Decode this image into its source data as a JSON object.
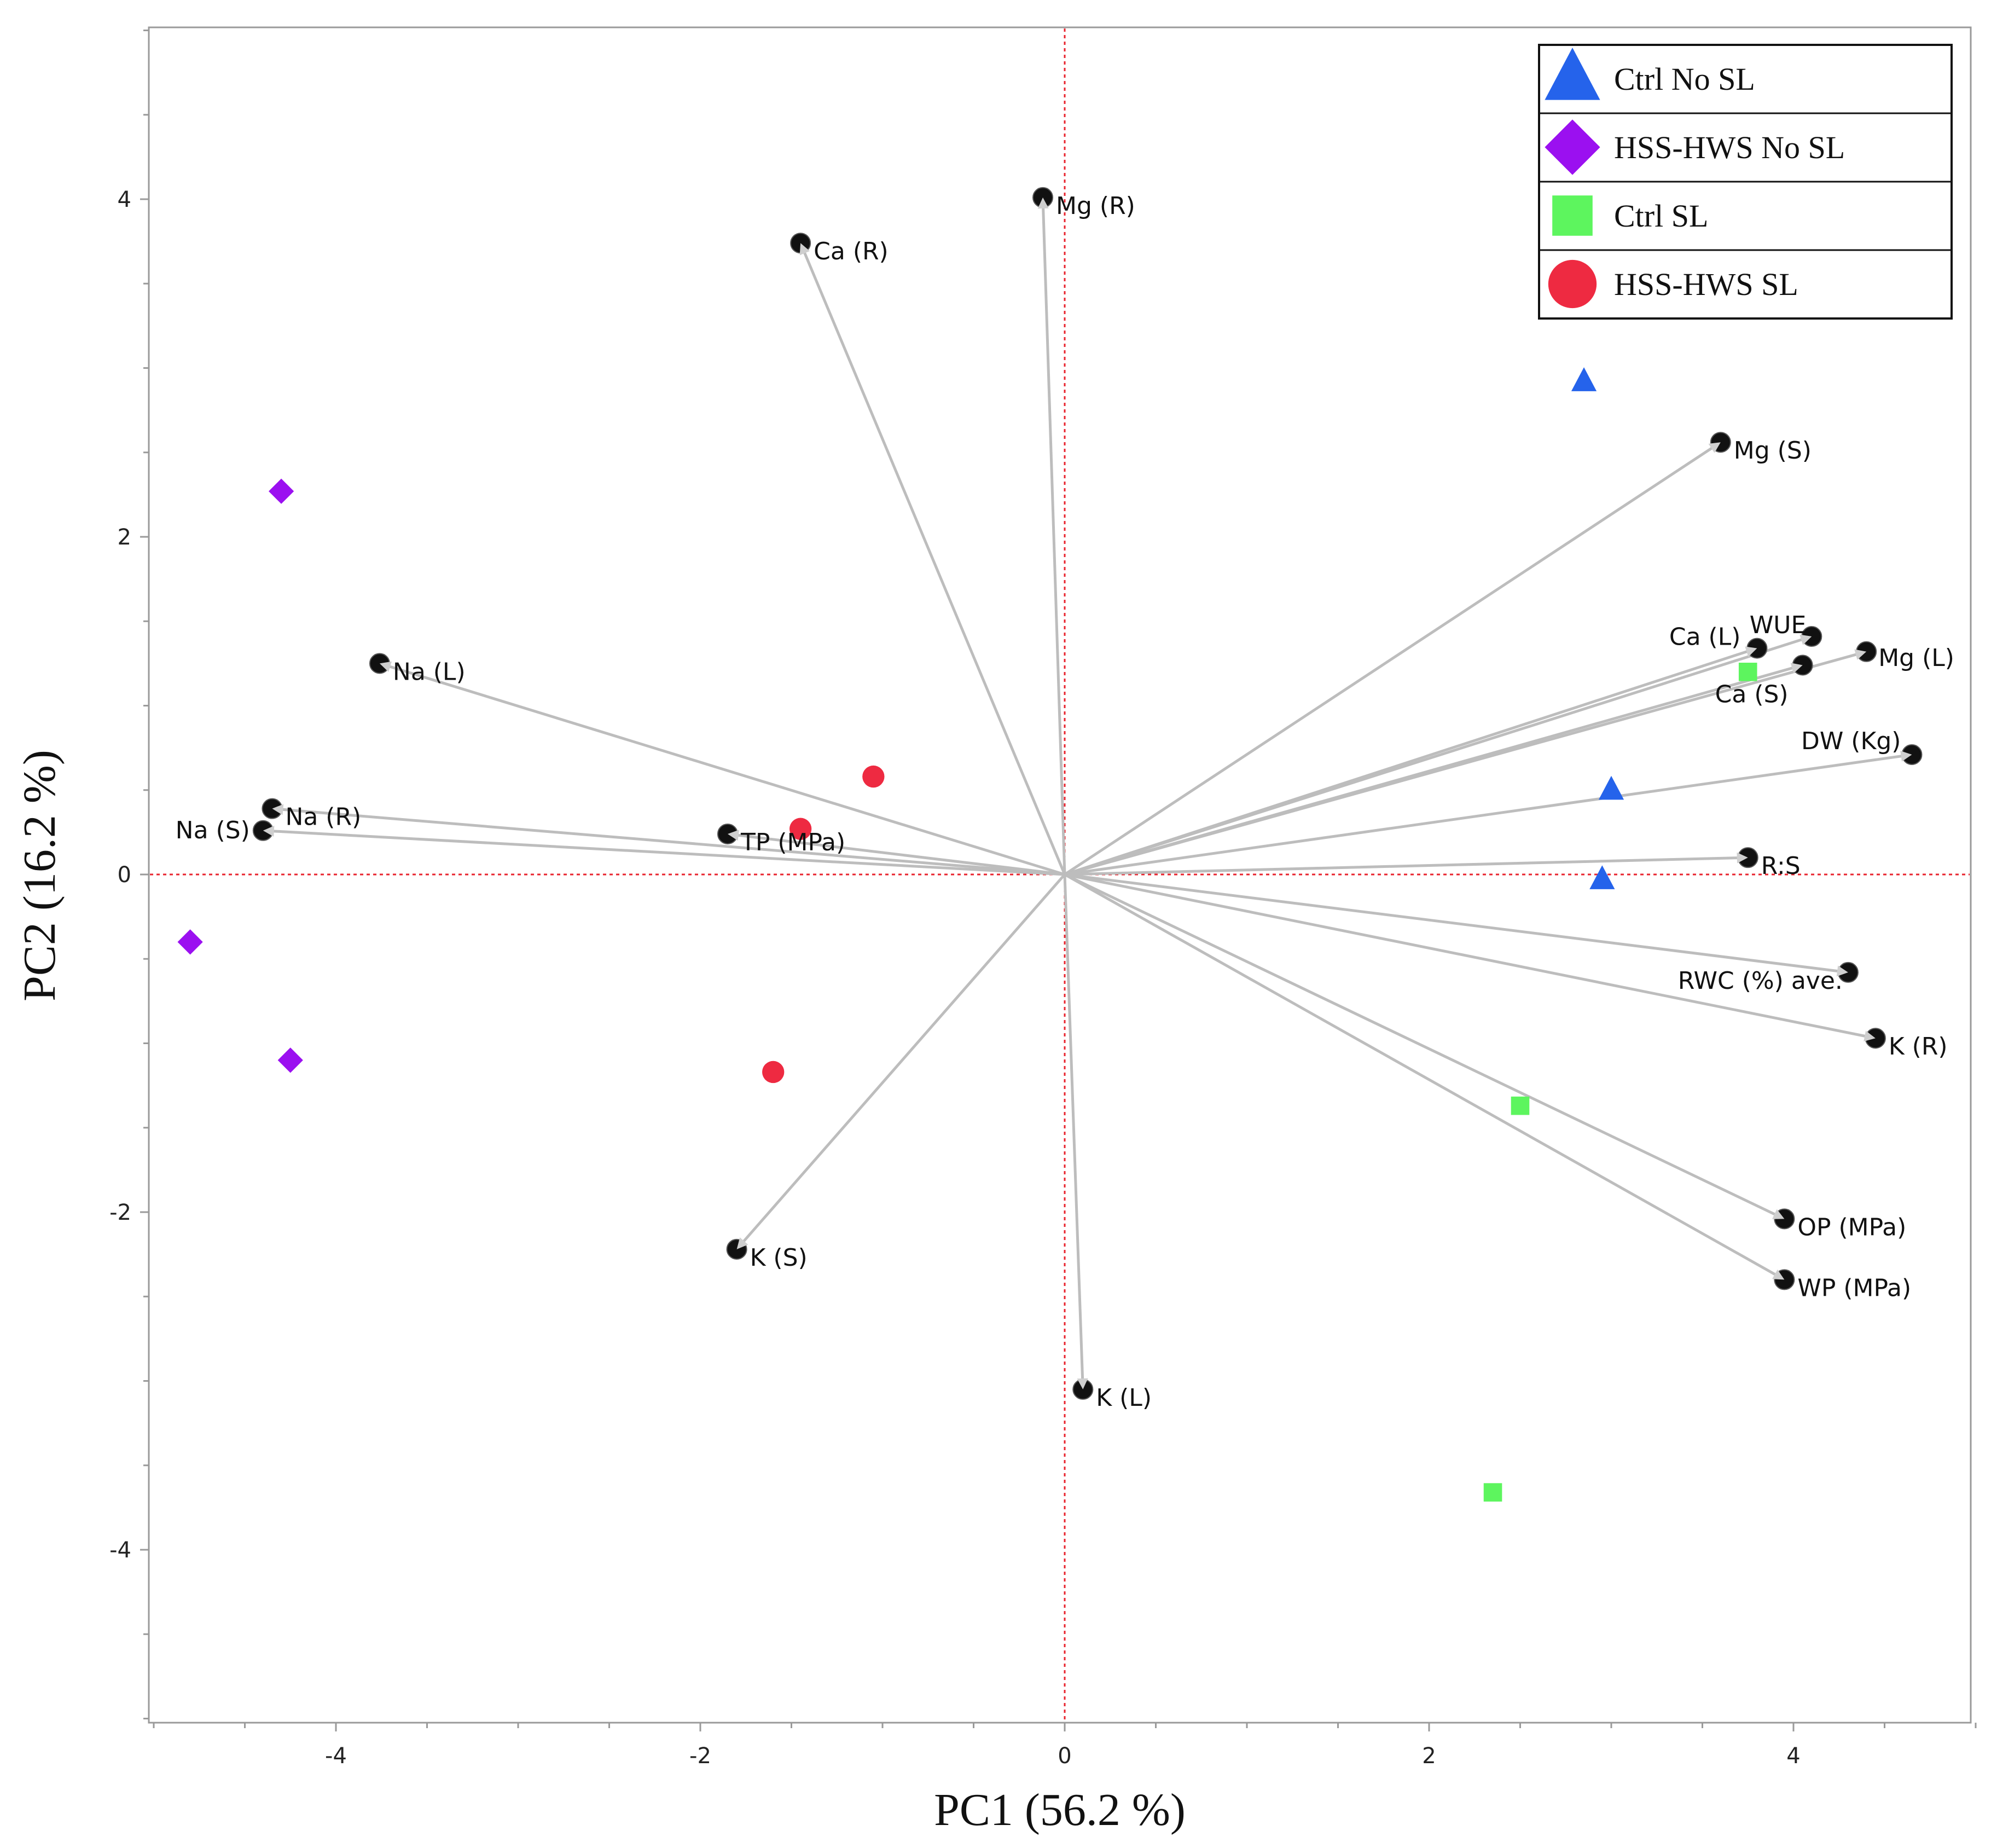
{
  "chart_data": {
    "type": "scatter",
    "subtype": "pca-biplot",
    "xlabel": "PC1 (56.2 %)",
    "ylabel": "PC2 (16.2 %)",
    "xlim": [
      -5,
      5
    ],
    "ylim": [
      -5,
      5
    ],
    "x_ticks": [
      -4,
      -2,
      0,
      2,
      4
    ],
    "y_ticks": [
      -4,
      -2,
      0,
      2,
      4
    ],
    "reference_lines": {
      "x": 0,
      "y": 0,
      "color": "#e8242f",
      "style": "dotted"
    },
    "loadings": [
      {
        "label": "Mg  (R)",
        "x": -0.12,
        "y": 4.01
      },
      {
        "label": "Ca  (R)",
        "x": -1.45,
        "y": 3.74
      },
      {
        "label": "Na  (L)",
        "x": -3.76,
        "y": 1.25
      },
      {
        "label": "Na  (R)",
        "x": -4.35,
        "y": 0.39
      },
      {
        "label": "Na  (S)",
        "x": -4.4,
        "y": 0.26
      },
      {
        "label": "TP (MPa)",
        "x": -1.85,
        "y": 0.24
      },
      {
        "label": "K  (S)",
        "x": -1.8,
        "y": -2.22
      },
      {
        "label": "K  (L)",
        "x": 0.1,
        "y": -3.05
      },
      {
        "label": "Mg  (S)",
        "x": 3.6,
        "y": 2.56
      },
      {
        "label": "Ca  (L)",
        "x": 3.8,
        "y": 1.34
      },
      {
        "label": "WUE",
        "x": 4.1,
        "y": 1.41
      },
      {
        "label": "Mg  (L)",
        "x": 4.4,
        "y": 1.32
      },
      {
        "label": "Ca  (S)",
        "x": 4.05,
        "y": 1.24
      },
      {
        "label": "DW  (Kg)",
        "x": 4.65,
        "y": 0.71
      },
      {
        "label": "R:S",
        "x": 3.75,
        "y": 0.1
      },
      {
        "label": "RWC (%) ave.",
        "x": 4.3,
        "y": -0.58
      },
      {
        "label": "K  (R)",
        "x": 4.45,
        "y": -0.97
      },
      {
        "label": "OP (MPa)",
        "x": 3.95,
        "y": -2.04
      },
      {
        "label": "WP  (MPa)",
        "x": 3.95,
        "y": -2.4
      }
    ],
    "series": [
      {
        "name": "Ctrl No SL",
        "marker": "triangle",
        "color": "#2563eb",
        "points": [
          [
            2.85,
            2.92
          ],
          [
            3.0,
            0.5
          ],
          [
            2.95,
            -0.03
          ]
        ]
      },
      {
        "name": "HSS-HWS  No SL",
        "marker": "diamond",
        "color": "#9b10f0",
        "points": [
          [
            -4.3,
            2.27
          ],
          [
            -4.8,
            -0.4
          ],
          [
            -4.25,
            -1.1
          ]
        ]
      },
      {
        "name": "Ctrl SL",
        "marker": "square",
        "color": "#5df55e",
        "points": [
          [
            3.75,
            1.2
          ],
          [
            2.5,
            -1.37
          ],
          [
            2.35,
            -3.66
          ]
        ]
      },
      {
        "name": "HSS-HWS  SL",
        "marker": "circle",
        "color": "#ee2a41",
        "points": [
          [
            -1.05,
            0.58
          ],
          [
            -1.45,
            0.27
          ],
          [
            -1.6,
            -1.17
          ]
        ]
      }
    ],
    "legend": {
      "position": "top-right"
    }
  },
  "colors": {
    "loading_vector": "#bdbdbd",
    "loading_marker": "#111111",
    "axis_frame": "#9a9a9a",
    "reference_line": "#e8242f"
  }
}
